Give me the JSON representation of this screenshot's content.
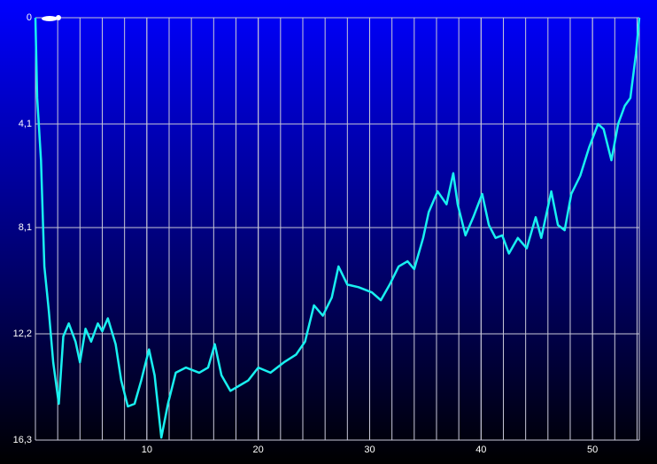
{
  "chart_data": {
    "type": "line",
    "x": [
      0,
      0.16,
      0.5,
      0.8,
      1.2,
      1.6,
      2.1,
      2.5,
      3.0,
      3.6,
      4.0,
      4.5,
      5.0,
      5.6,
      6.0,
      6.5,
      7.2,
      7.7,
      8.3,
      8.9,
      9.5,
      10.2,
      10.7,
      11.3,
      11.9,
      12.6,
      13.5,
      14.7,
      15.5,
      16.1,
      16.7,
      17.5,
      18.3,
      19.1,
      20.0,
      21.1,
      22.3,
      23.4,
      24.2,
      25.0,
      25.8,
      26.6,
      27.2,
      28.0,
      29.0,
      30.2,
      31.0,
      31.8,
      32.6,
      33.4,
      34.0,
      34.8,
      35.3,
      36.1,
      36.9,
      37.5,
      37.9,
      38.6,
      39.3,
      40.1,
      40.7,
      41.3,
      41.9,
      42.5,
      43.3,
      44.1,
      44.9,
      45.4,
      46.3,
      46.9,
      47.5,
      48.1,
      48.9,
      49.7,
      50.5,
      51.0,
      51.7,
      52.3,
      52.9,
      53.4,
      53.9,
      54.2
    ],
    "series": [
      {
        "color": "#19f0f0",
        "values": [
          0,
          3.1,
          5.5,
          9.6,
          11.3,
          13.3,
          14.9,
          12.3,
          11.8,
          12.5,
          13.3,
          12.0,
          12.5,
          11.8,
          12.1,
          11.6,
          12.6,
          14.0,
          15.0,
          14.9,
          14.0,
          12.8,
          13.8,
          16.2,
          14.9,
          13.7,
          13.5,
          13.7,
          13.5,
          12.6,
          13.8,
          14.4,
          14.2,
          14.0,
          13.5,
          13.7,
          13.3,
          13.0,
          12.5,
          11.1,
          11.5,
          10.8,
          9.6,
          10.3,
          10.4,
          10.6,
          10.9,
          10.3,
          9.6,
          9.4,
          9.7,
          8.5,
          7.5,
          6.7,
          7.2,
          6.0,
          7.2,
          8.4,
          7.7,
          6.8,
          8.0,
          8.5,
          8.4,
          9.1,
          8.5,
          8.9,
          7.7,
          8.5,
          6.7,
          8.0,
          8.2,
          6.8,
          6.1,
          5.0,
          4.1,
          4.3,
          5.5,
          4.1,
          3.4,
          3.1,
          1.4,
          0
        ]
      }
    ],
    "xlim": [
      0,
      54.2
    ],
    "xticks": [
      10,
      20,
      30,
      40,
      50
    ],
    "ylim": [
      0,
      16.3
    ],
    "yticks": [
      0,
      {
        "value": 4.1,
        "label": "4,1"
      },
      {
        "value": 8.1,
        "label": "8,1"
      },
      {
        "value": 12.2,
        "label": "12,2"
      },
      {
        "value": 16.3,
        "label": "16,3"
      }
    ],
    "y_inverted": true,
    "grid": true
  }
}
